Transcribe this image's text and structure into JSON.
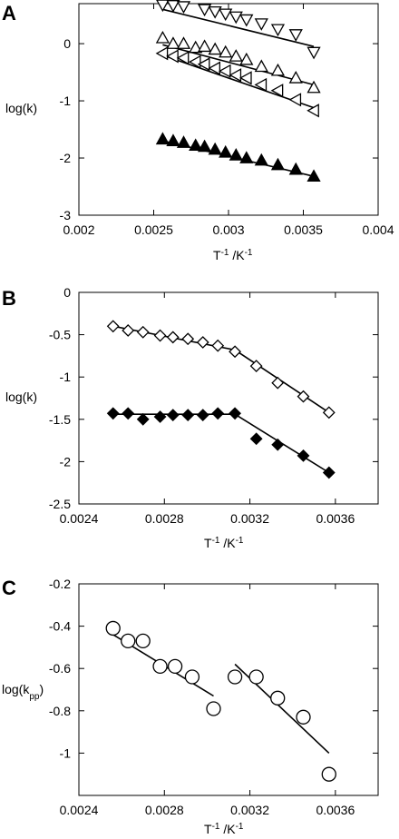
{
  "chart_data": [
    {
      "panel": "A",
      "type": "scatter",
      "xlabel_base": "T",
      "xlabel_sup": "-1",
      "xlabel_mid": " /K",
      "xlabel_sup2": "-1",
      "ylabel": "log(k)",
      "xlim": [
        0.002,
        0.004
      ],
      "ylim": [
        -3,
        0.7
      ],
      "xticks": [
        "0.002",
        "0.0025",
        "0.003",
        "0.0035",
        "0.004"
      ],
      "xtick_values": [
        0.002,
        0.0025,
        0.003,
        0.0035,
        0.004
      ],
      "yticks": [
        "0",
        "-1",
        "-2",
        "-3"
      ],
      "ytick_values": [
        0,
        -1,
        -2,
        -3
      ],
      "grid": false,
      "series": [
        {
          "marker": "triangle-down-open",
          "x": [
            0.00256,
            0.00263,
            0.0027,
            0.00284,
            0.00291,
            0.00298,
            0.00305,
            0.00312,
            0.00322,
            0.00333,
            0.00345,
            0.00357
          ],
          "y": [
            0.68,
            0.67,
            0.65,
            0.6,
            0.56,
            0.52,
            0.47,
            0.42,
            0.35,
            0.25,
            0.16,
            -0.15
          ],
          "fit": [
            [
              0.00256,
              0.6
            ],
            [
              0.00357,
              -0.05
            ]
          ]
        },
        {
          "marker": "triangle-up-open",
          "x": [
            0.00256,
            0.00263,
            0.0027,
            0.00278,
            0.00284,
            0.00291,
            0.00298,
            0.00305,
            0.00312,
            0.00322,
            0.00333,
            0.00345,
            0.00357
          ],
          "y": [
            0.1,
            0.0,
            0.0,
            -0.07,
            -0.05,
            -0.1,
            -0.15,
            -0.22,
            -0.28,
            -0.4,
            -0.47,
            -0.6,
            -0.77
          ],
          "fit": [
            [
              0.00256,
              -0.02
            ],
            [
              0.00357,
              -0.72
            ]
          ]
        },
        {
          "marker": "triangle-left-open",
          "x": [
            0.00256,
            0.00263,
            0.0027,
            0.00278,
            0.00284,
            0.00291,
            0.00298,
            0.00305,
            0.00312,
            0.00322,
            0.00333,
            0.00345,
            0.00357
          ],
          "y": [
            -0.17,
            -0.22,
            -0.25,
            -0.32,
            -0.36,
            -0.43,
            -0.48,
            -0.55,
            -0.6,
            -0.72,
            -0.82,
            -0.98,
            -1.17
          ],
          "fit": [
            [
              0.00256,
              -0.2
            ],
            [
              0.00357,
              -1.12
            ]
          ]
        },
        {
          "marker": "triangle-up-filled",
          "x": [
            0.00256,
            0.00263,
            0.0027,
            0.00278,
            0.00284,
            0.00291,
            0.00298,
            0.00305,
            0.00312,
            0.00322,
            0.00333,
            0.00345,
            0.00357
          ],
          "y": [
            -1.67,
            -1.7,
            -1.73,
            -1.78,
            -1.8,
            -1.85,
            -1.9,
            -1.95,
            -2.0,
            -2.04,
            -2.12,
            -2.2,
            -2.32
          ],
          "fit": [
            [
              0.00256,
              -1.7
            ],
            [
              0.00357,
              -2.32
            ]
          ]
        }
      ]
    },
    {
      "panel": "B",
      "type": "scatter",
      "xlabel_base": "T",
      "xlabel_sup": "-1",
      "xlabel_mid": " /K",
      "xlabel_sup2": "-1",
      "ylabel": "log(k)",
      "xlim": [
        0.0024,
        0.0038
      ],
      "ylim": [
        -2.5,
        0
      ],
      "xticks": [
        "0.0024",
        "0.0028",
        "0.0032",
        "0.0036"
      ],
      "xtick_values": [
        0.0024,
        0.0028,
        0.0032,
        0.0036
      ],
      "yticks": [
        "0",
        "-0.5",
        "-1",
        "-1.5",
        "-2",
        "-2.5"
      ],
      "ytick_values": [
        0,
        -0.5,
        -1,
        -1.5,
        -2,
        -2.5
      ],
      "grid": false,
      "series": [
        {
          "marker": "diamond-open",
          "x": [
            0.00256,
            0.00263,
            0.0027,
            0.00278,
            0.00284,
            0.00291,
            0.00298,
            0.00305,
            0.00313,
            0.00323,
            0.00333,
            0.00345,
            0.00357
          ],
          "y": [
            -0.4,
            -0.45,
            -0.47,
            -0.51,
            -0.53,
            -0.55,
            -0.59,
            -0.63,
            -0.7,
            -0.87,
            -1.07,
            -1.23,
            -1.42
          ],
          "fit": [
            [
              0.00256,
              -0.4
            ],
            [
              0.00313,
              -0.68
            ],
            [
              0.00357,
              -1.42
            ]
          ]
        },
        {
          "marker": "diamond-filled",
          "x": [
            0.00256,
            0.00263,
            0.0027,
            0.00278,
            0.00284,
            0.00291,
            0.00298,
            0.00305,
            0.00313,
            0.00323,
            0.00333,
            0.00345,
            0.00357
          ],
          "y": [
            -1.43,
            -1.43,
            -1.5,
            -1.47,
            -1.45,
            -1.45,
            -1.45,
            -1.43,
            -1.43,
            -1.73,
            -1.8,
            -1.93,
            -2.13
          ],
          "fit": [
            [
              0.00256,
              -1.44
            ],
            [
              0.00313,
              -1.44
            ],
            [
              0.00357,
              -2.13
            ]
          ]
        }
      ]
    },
    {
      "panel": "C",
      "type": "scatter",
      "xlabel_base": "T",
      "xlabel_sup": "-1",
      "xlabel_mid": " /K",
      "xlabel_sup2": "-1",
      "ylabel_base": "log(k",
      "ylabel_sub": "pp",
      "ylabel_end": ")",
      "xlim": [
        0.0024,
        0.0038
      ],
      "ylim": [
        -1.2,
        -0.2
      ],
      "xticks": [
        "0.0024",
        "0.0028",
        "0.0032",
        "0.0036"
      ],
      "xtick_values": [
        0.0024,
        0.0028,
        0.0032,
        0.0036
      ],
      "yticks": [
        "-0.2",
        "-0.4",
        "-0.6",
        "-0.8",
        "-1"
      ],
      "ytick_values": [
        -0.2,
        -0.4,
        -0.6,
        -0.8,
        -1
      ],
      "grid": false,
      "series": [
        {
          "marker": "circle-open",
          "x": [
            0.00256,
            0.00263,
            0.0027,
            0.00278,
            0.00285,
            0.00293,
            0.00303,
            0.00313,
            0.00323,
            0.00333,
            0.00345,
            0.00357
          ],
          "y": [
            -0.41,
            -0.47,
            -0.47,
            -0.59,
            -0.59,
            -0.64,
            -0.79,
            -0.64,
            -0.64,
            -0.74,
            -0.83,
            -1.1
          ],
          "fit": [
            [
              0.00256,
              -0.44
            ],
            [
              0.00303,
              -0.73
            ]
          ],
          "fit2": [
            [
              0.00313,
              -0.58
            ],
            [
              0.00357,
              -1.0
            ]
          ]
        }
      ]
    }
  ]
}
